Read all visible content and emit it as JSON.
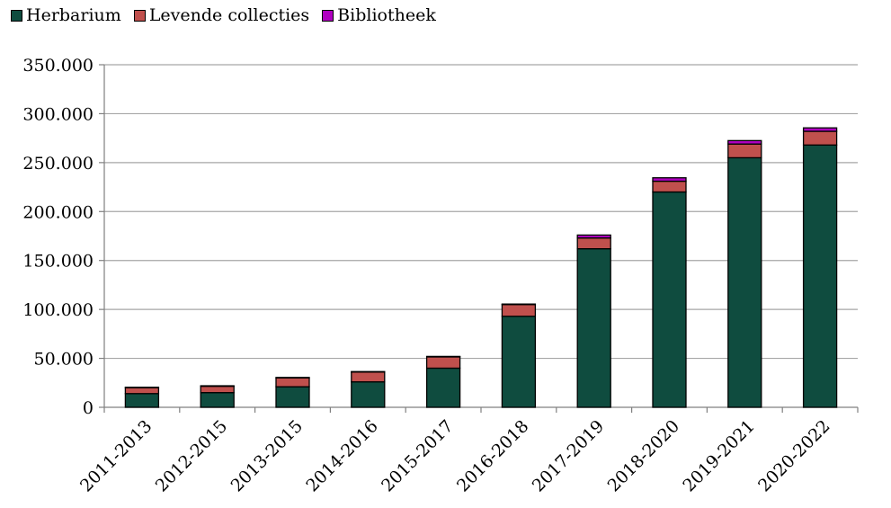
{
  "chart_data": {
    "type": "bar",
    "stacked": true,
    "title": "",
    "xlabel": "",
    "ylabel": "",
    "categories": [
      "2011-2013",
      "2012-2015",
      "2013-2015",
      "2014-2016",
      "2015-2017",
      "2016-2018",
      "2017-2019",
      "2018-2020",
      "2019-2021",
      "2020-2022"
    ],
    "series": [
      {
        "name": "Herbarium",
        "color": "#0f4c3f",
        "values": [
          14000,
          15000,
          21000,
          26000,
          40000,
          93000,
          162000,
          220000,
          255000,
          268000
        ]
      },
      {
        "name": "Levende collecties",
        "color": "#c0504d",
        "values": [
          6000,
          6500,
          9000,
          10000,
          11500,
          12000,
          11000,
          11000,
          14000,
          14000
        ]
      },
      {
        "name": "Bibliotheek",
        "color": "#b000c0",
        "values": [
          500,
          500,
          500,
          500,
          500,
          500,
          3000,
          3500,
          3500,
          3500
        ]
      }
    ],
    "ylim": [
      0,
      350000
    ],
    "yticks": [
      0,
      50000,
      100000,
      150000,
      200000,
      250000,
      300000,
      350000
    ],
    "ytick_labels": [
      "0",
      "50.000",
      "100.000",
      "150.000",
      "200.000",
      "250.000",
      "300.000",
      "350.000"
    ],
    "grid": true,
    "legend_position": "top-left"
  }
}
